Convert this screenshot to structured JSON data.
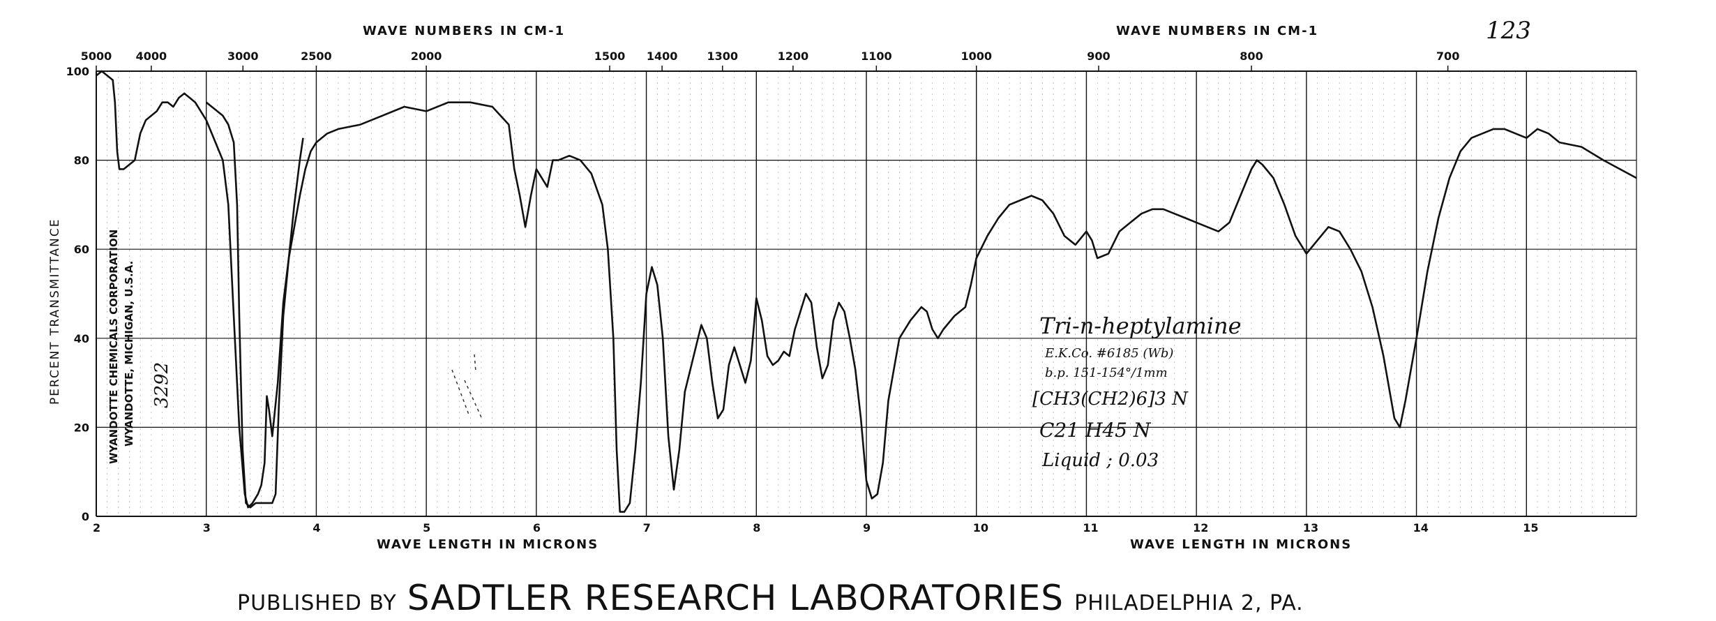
{
  "page_number": "123",
  "catalog_number": "3292",
  "side_text": {
    "company": "WYANDOTTE CHEMICALS CORPORATION",
    "location": "WYANDOTTE, MICHIGAN, U.S.A."
  },
  "annotation": {
    "line1": "Tri-n-heptylamine",
    "line2": "E.K.Co. #6185 (Wb)",
    "line3": "b.p. 151-154°/1mm",
    "line4": "[CH3(CH2)6]3 N",
    "line5": "C21 H45 N",
    "line6": "Liquid ; 0.03"
  },
  "publisher": {
    "prefix": "PUBLISHED BY",
    "name": "SADTLER RESEARCH LABORATORIES",
    "suffix": "PHILADELPHIA 2, PA."
  },
  "colors": {
    "ink": "#111111",
    "background": "#ffffff"
  },
  "chart_data": {
    "type": "line",
    "title": "",
    "ylabel": "PERCENT TRANSMITTANCE",
    "xlabel_left": "WAVE LENGTH IN MICRONS",
    "xlabel_right": "WAVE LENGTH IN MICRONS",
    "top_label_left": "WAVE NUMBERS IN CM-1",
    "top_label_right": "WAVE NUMBERS IN CM-1",
    "xlim": [
      2,
      16
    ],
    "ylim": [
      0,
      100
    ],
    "grid": true,
    "x_ticks": [
      2,
      3,
      4,
      5,
      6,
      7,
      8,
      9,
      10,
      11,
      12,
      13,
      14,
      15
    ],
    "y_ticks": [
      0,
      20,
      40,
      60,
      80,
      100
    ],
    "top_ticks": [
      {
        "label": "5000",
        "value": 5000
      },
      {
        "label": "4000",
        "value": 4000
      },
      {
        "label": "3000",
        "value": 3000
      },
      {
        "label": "2500",
        "value": 2500
      },
      {
        "label": "2000",
        "value": 2000
      },
      {
        "label": "1500",
        "value": 1500
      },
      {
        "label": "1400",
        "value": 1400
      },
      {
        "label": "1300",
        "value": 1300
      },
      {
        "label": "1200",
        "value": 1200
      },
      {
        "label": "1100",
        "value": 1100
      },
      {
        "label": "1000",
        "value": 1000
      },
      {
        "label": "900",
        "value": 900
      },
      {
        "label": "800",
        "value": 800
      },
      {
        "label": "700",
        "value": 700
      }
    ],
    "series": [
      {
        "points": [
          [
            2.0,
            99
          ],
          [
            2.05,
            100
          ],
          [
            2.1,
            99
          ],
          [
            2.15,
            98
          ],
          [
            2.17,
            93
          ],
          [
            2.19,
            82
          ],
          [
            2.21,
            78
          ],
          [
            2.25,
            78
          ],
          [
            2.3,
            79
          ],
          [
            2.35,
            80
          ],
          [
            2.4,
            86
          ],
          [
            2.45,
            89
          ],
          [
            2.5,
            90
          ],
          [
            2.55,
            91
          ],
          [
            2.6,
            93
          ],
          [
            2.65,
            93
          ],
          [
            2.7,
            92
          ],
          [
            2.75,
            94
          ],
          [
            2.8,
            95
          ],
          [
            2.85,
            94
          ],
          [
            2.9,
            93
          ],
          [
            2.95,
            91
          ],
          [
            3.0,
            89
          ],
          [
            3.05,
            86
          ],
          [
            3.1,
            83
          ],
          [
            3.15,
            80
          ],
          [
            3.2,
            70
          ],
          [
            3.25,
            45
          ],
          [
            3.3,
            20
          ],
          [
            3.35,
            5
          ],
          [
            3.38,
            2
          ],
          [
            3.42,
            3
          ],
          [
            3.47,
            5
          ],
          [
            3.5,
            7
          ],
          [
            3.53,
            12
          ],
          [
            3.55,
            27
          ],
          [
            3.57,
            24
          ],
          [
            3.6,
            18
          ],
          [
            3.65,
            30
          ],
          [
            3.7,
            48
          ],
          [
            3.75,
            58
          ],
          [
            3.8,
            65
          ],
          [
            3.85,
            72
          ],
          [
            3.9,
            78
          ],
          [
            3.95,
            82
          ],
          [
            4.0,
            84
          ],
          [
            4.1,
            86
          ],
          [
            4.2,
            87
          ],
          [
            4.4,
            88
          ],
          [
            4.6,
            90
          ],
          [
            4.8,
            92
          ],
          [
            5.0,
            91
          ],
          [
            5.2,
            93
          ],
          [
            5.4,
            93
          ],
          [
            5.6,
            92
          ],
          [
            5.75,
            88
          ],
          [
            5.8,
            78
          ],
          [
            5.85,
            72
          ],
          [
            5.9,
            65
          ],
          [
            5.95,
            72
          ],
          [
            6.0,
            78
          ],
          [
            6.05,
            76
          ],
          [
            6.1,
            74
          ],
          [
            6.15,
            80
          ],
          [
            6.2,
            80
          ],
          [
            6.3,
            81
          ],
          [
            6.4,
            80
          ],
          [
            6.5,
            77
          ],
          [
            6.6,
            70
          ],
          [
            6.65,
            60
          ],
          [
            6.7,
            40
          ],
          [
            6.73,
            15
          ],
          [
            6.76,
            1
          ],
          [
            6.8,
            1
          ],
          [
            6.85,
            3
          ],
          [
            6.9,
            15
          ],
          [
            6.95,
            30
          ],
          [
            7.0,
            50
          ],
          [
            7.05,
            56
          ],
          [
            7.1,
            52
          ],
          [
            7.15,
            40
          ],
          [
            7.2,
            18
          ],
          [
            7.25,
            6
          ],
          [
            7.3,
            15
          ],
          [
            7.35,
            28
          ],
          [
            7.45,
            38
          ],
          [
            7.5,
            43
          ],
          [
            7.55,
            40
          ],
          [
            7.6,
            30
          ],
          [
            7.65,
            22
          ],
          [
            7.7,
            24
          ],
          [
            7.75,
            34
          ],
          [
            7.8,
            38
          ],
          [
            7.85,
            34
          ],
          [
            7.9,
            30
          ],
          [
            7.95,
            35
          ],
          [
            8.0,
            49
          ],
          [
            8.05,
            44
          ],
          [
            8.1,
            36
          ],
          [
            8.15,
            34
          ],
          [
            8.2,
            35
          ],
          [
            8.25,
            37
          ],
          [
            8.3,
            36
          ],
          [
            8.35,
            42
          ],
          [
            8.45,
            50
          ],
          [
            8.5,
            48
          ],
          [
            8.55,
            38
          ],
          [
            8.6,
            31
          ],
          [
            8.65,
            34
          ],
          [
            8.7,
            44
          ],
          [
            8.75,
            48
          ],
          [
            8.8,
            46
          ],
          [
            8.85,
            40
          ],
          [
            8.9,
            33
          ],
          [
            8.95,
            22
          ],
          [
            9.0,
            8
          ],
          [
            9.05,
            4
          ],
          [
            9.1,
            5
          ],
          [
            9.15,
            12
          ],
          [
            9.2,
            26
          ],
          [
            9.3,
            40
          ],
          [
            9.4,
            44
          ],
          [
            9.5,
            47
          ],
          [
            9.55,
            46
          ],
          [
            9.6,
            42
          ],
          [
            9.65,
            40
          ],
          [
            9.7,
            42
          ],
          [
            9.8,
            45
          ],
          [
            9.9,
            47
          ],
          [
            9.95,
            52
          ],
          [
            10.0,
            58
          ],
          [
            10.1,
            63
          ],
          [
            10.2,
            67
          ],
          [
            10.3,
            70
          ],
          [
            10.4,
            71
          ],
          [
            10.5,
            72
          ],
          [
            10.6,
            71
          ],
          [
            10.7,
            68
          ],
          [
            10.8,
            63
          ],
          [
            10.9,
            61
          ],
          [
            11.0,
            64
          ],
          [
            11.05,
            62
          ],
          [
            11.1,
            58
          ],
          [
            11.2,
            59
          ],
          [
            11.3,
            64
          ],
          [
            11.4,
            66
          ],
          [
            11.5,
            68
          ],
          [
            11.6,
            69
          ],
          [
            11.7,
            69
          ],
          [
            11.8,
            68
          ],
          [
            11.9,
            67
          ],
          [
            12.0,
            66
          ],
          [
            12.1,
            65
          ],
          [
            12.2,
            64
          ],
          [
            12.3,
            66
          ],
          [
            12.4,
            72
          ],
          [
            12.5,
            78
          ],
          [
            12.55,
            80
          ],
          [
            12.6,
            79
          ],
          [
            12.7,
            76
          ],
          [
            12.8,
            70
          ],
          [
            12.9,
            63
          ],
          [
            13.0,
            59
          ],
          [
            13.1,
            62
          ],
          [
            13.2,
            65
          ],
          [
            13.3,
            64
          ],
          [
            13.4,
            60
          ],
          [
            13.5,
            55
          ],
          [
            13.6,
            47
          ],
          [
            13.7,
            36
          ],
          [
            13.8,
            22
          ],
          [
            13.85,
            20
          ],
          [
            13.9,
            26
          ],
          [
            14.0,
            40
          ],
          [
            14.1,
            55
          ],
          [
            14.2,
            67
          ],
          [
            14.3,
            76
          ],
          [
            14.4,
            82
          ],
          [
            14.5,
            85
          ],
          [
            14.6,
            86
          ],
          [
            14.7,
            87
          ],
          [
            14.8,
            87
          ],
          [
            14.9,
            86
          ],
          [
            15.0,
            85
          ],
          [
            15.1,
            87
          ],
          [
            15.2,
            86
          ],
          [
            15.3,
            84
          ],
          [
            15.5,
            83
          ],
          [
            15.7,
            80
          ],
          [
            15.85,
            78
          ],
          [
            16.0,
            76
          ]
        ]
      },
      {
        "points": [
          [
            3.0,
            93
          ],
          [
            3.05,
            92
          ],
          [
            3.1,
            91
          ],
          [
            3.15,
            90
          ],
          [
            3.2,
            88
          ],
          [
            3.25,
            84
          ],
          [
            3.28,
            70
          ],
          [
            3.3,
            45
          ],
          [
            3.33,
            15
          ],
          [
            3.36,
            3
          ],
          [
            3.4,
            2
          ],
          [
            3.45,
            3
          ],
          [
            3.5,
            3
          ],
          [
            3.55,
            3
          ],
          [
            3.6,
            3
          ],
          [
            3.63,
            5
          ],
          [
            3.66,
            25
          ],
          [
            3.7,
            45
          ],
          [
            3.75,
            58
          ],
          [
            3.8,
            70
          ],
          [
            3.85,
            80
          ],
          [
            3.88,
            85
          ]
        ]
      }
    ]
  }
}
